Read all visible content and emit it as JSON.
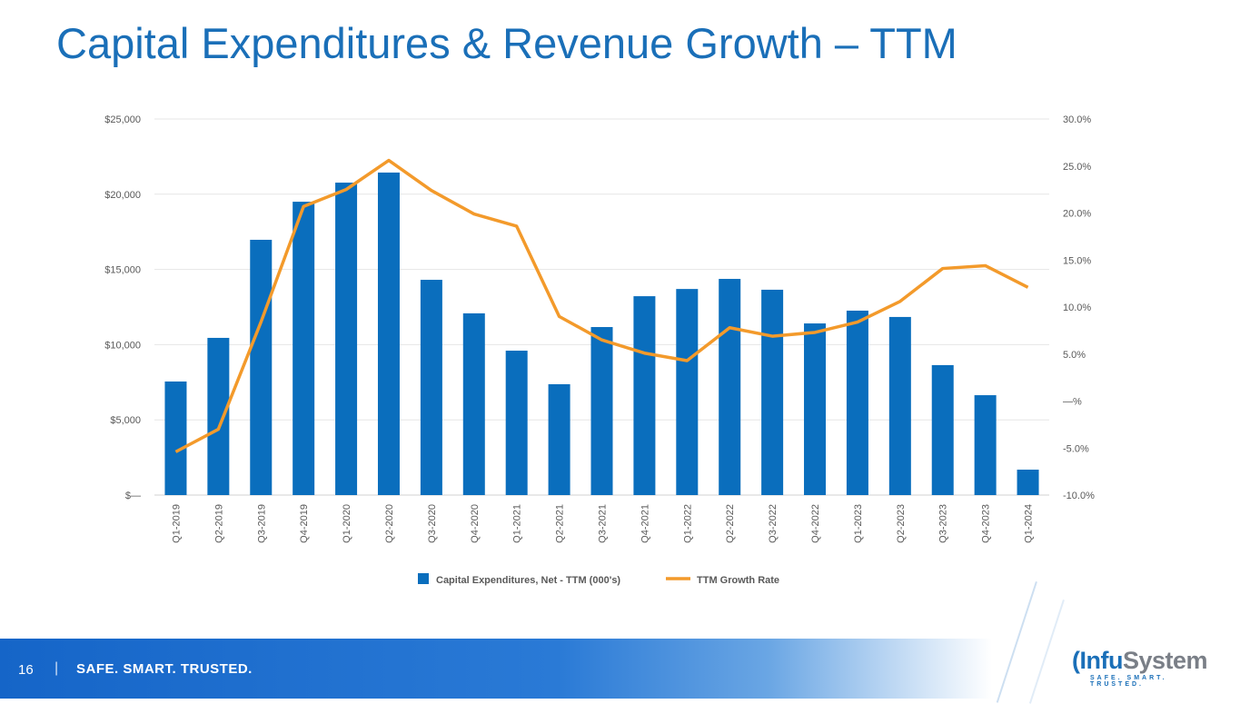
{
  "title": "Capital Expenditures & Revenue Growth – TTM",
  "footer": {
    "page": "16",
    "separator": "|",
    "tagline": "SAFE. SMART. TRUSTED.",
    "logo_text": "InfuSystem",
    "logo_tagline": "SAFE. SMART. TRUSTED."
  },
  "colors": {
    "bar": "#0a6ebd",
    "line": "#f39a2b",
    "title": "#1a6fb8"
  },
  "chart_data": {
    "type": "bar+line",
    "categories": [
      "Q1-2019",
      "Q2-2019",
      "Q3-2019",
      "Q4-2019",
      "Q1-2020",
      "Q2-2020",
      "Q3-2020",
      "Q4-2020",
      "Q1-2021",
      "Q2-2021",
      "Q3-2021",
      "Q4-2021",
      "Q1-2022",
      "Q2-2022",
      "Q3-2022",
      "Q4-2022",
      "Q1-2023",
      "Q2-2023",
      "Q3-2023",
      "Q4-2023",
      "Q1-2024"
    ],
    "series": [
      {
        "name": "Capital Expenditures, Net - TTM (000's)",
        "type": "bar",
        "axis": "left",
        "values": [
          7550,
          10450,
          16970,
          19500,
          20770,
          21440,
          14310,
          12080,
          9600,
          7370,
          11170,
          13220,
          13700,
          14370,
          13650,
          11410,
          12260,
          11840,
          8640,
          6640,
          1690
        ]
      },
      {
        "name": "TTM Growth Rate",
        "type": "line",
        "axis": "right",
        "values": [
          -5.4,
          -3.0,
          8.4,
          20.7,
          22.5,
          25.6,
          22.4,
          19.9,
          18.6,
          9.0,
          6.5,
          5.1,
          4.3,
          7.8,
          6.9,
          7.3,
          8.4,
          10.6,
          14.1,
          14.4,
          12.1
        ]
      }
    ],
    "left_axis": {
      "ylim": [
        0,
        25000
      ],
      "ticks": [
        "$—",
        "$5,000",
        "$10,000",
        "$15,000",
        "$20,000",
        "$25,000"
      ]
    },
    "right_axis": {
      "ylim": [
        -10,
        30
      ],
      "ticks": [
        "-10.0%",
        "-5.0%",
        "—%",
        "5.0%",
        "10.0%",
        "15.0%",
        "20.0%",
        "25.0%",
        "30.0%"
      ]
    },
    "grid": true,
    "legend": "bottom"
  }
}
